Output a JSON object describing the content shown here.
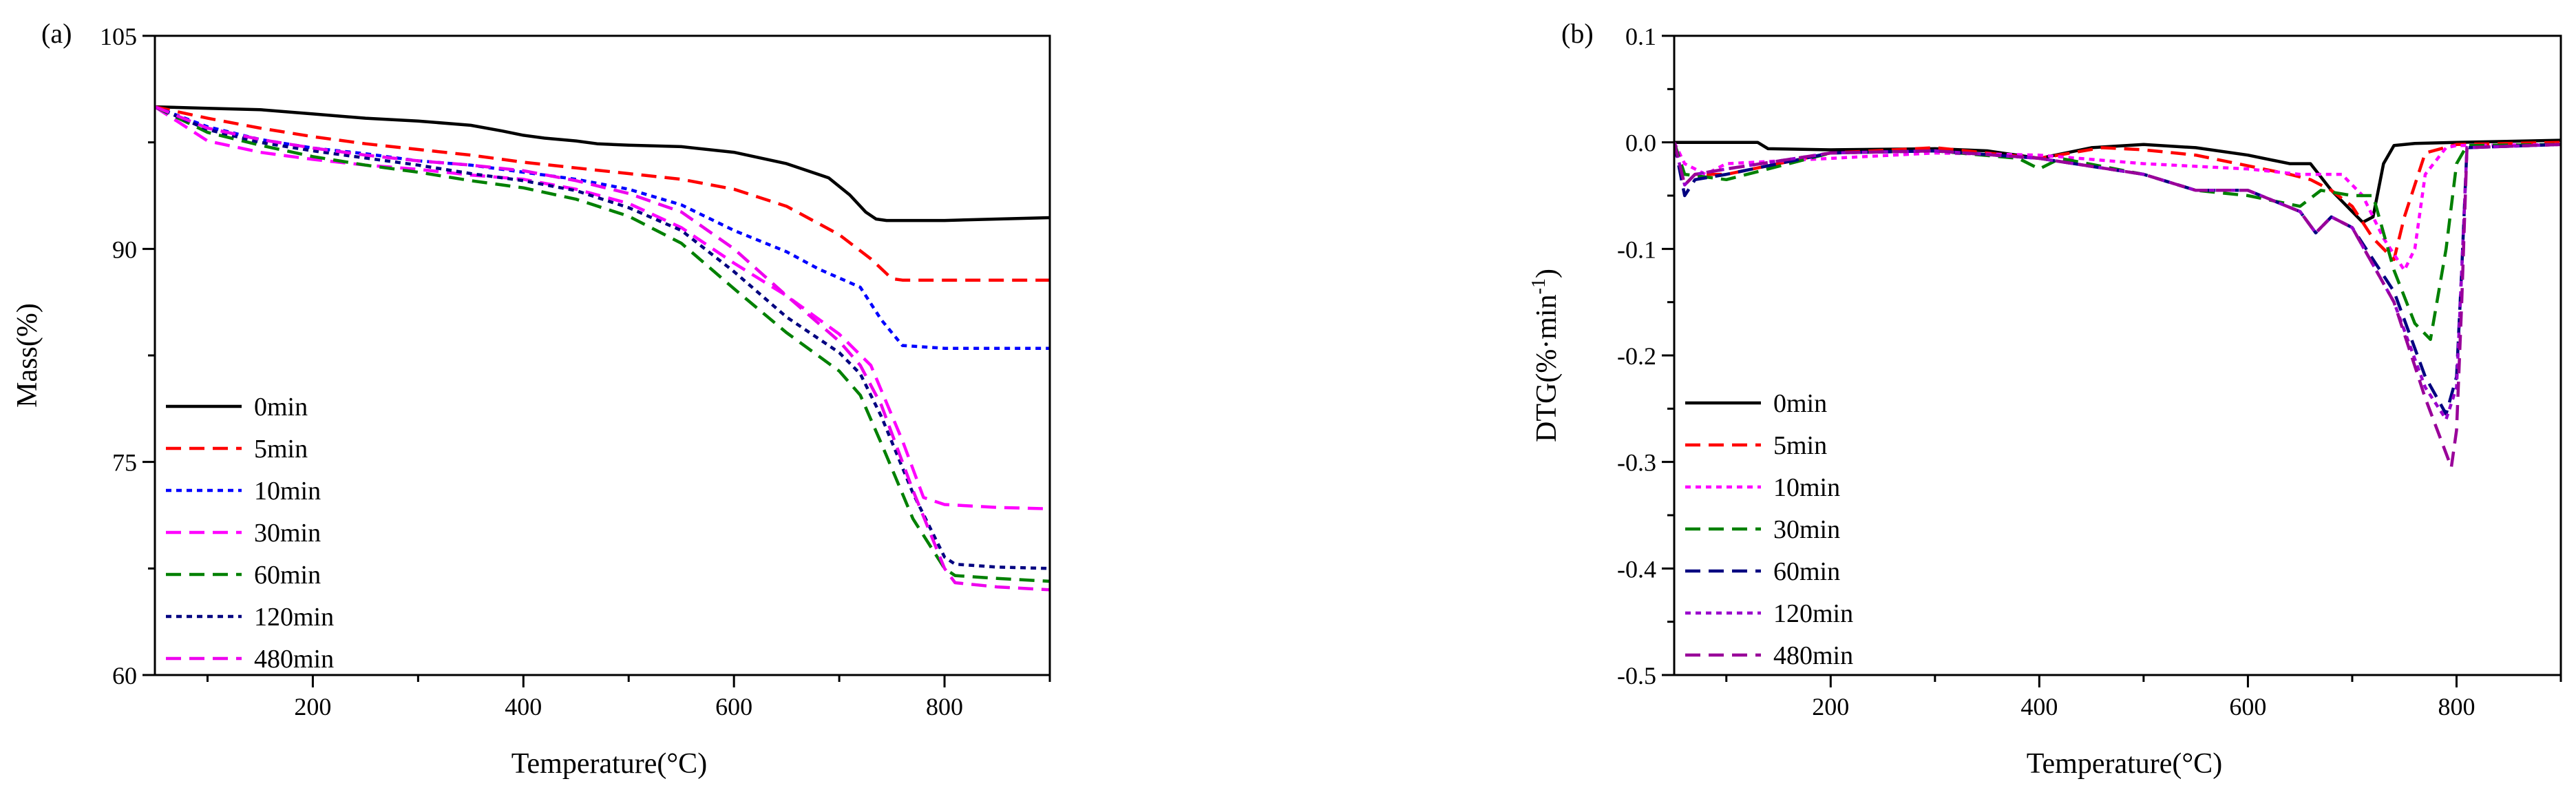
{
  "chart_data": [
    {
      "type": "line",
      "panel_label": "(a)",
      "title": "",
      "xlabel": "Temperature(°C)",
      "ylabel": "Mass(%)",
      "xlim": [
        50,
        900
      ],
      "ylim": [
        60,
        105
      ],
      "xticks": [
        200,
        400,
        600,
        800
      ],
      "yticks": [
        60,
        75,
        90,
        105
      ],
      "xtick_labels": [
        "200",
        "400",
        "600",
        "800"
      ],
      "ytick_labels": [
        "60",
        "75",
        "90",
        "105"
      ],
      "grid": false,
      "legend": "bottom-left",
      "series": [
        {
          "name": "0min",
          "color": "#000000",
          "dash": "solid",
          "x": [
            50,
            100,
            150,
            200,
            250,
            300,
            350,
            380,
            400,
            420,
            450,
            470,
            500,
            550,
            600,
            650,
            690,
            710,
            725,
            735,
            745,
            760,
            800,
            850,
            900
          ],
          "y": [
            100,
            99.9,
            99.8,
            99.5,
            99.2,
            99.0,
            98.7,
            98.3,
            98.0,
            97.8,
            97.6,
            97.4,
            97.3,
            97.2,
            96.8,
            96.0,
            95.0,
            93.8,
            92.6,
            92.1,
            92.0,
            92.0,
            92.0,
            92.1,
            92.2
          ]
        },
        {
          "name": "5min",
          "color": "#ff0000",
          "dash": "dashed",
          "x": [
            50,
            100,
            150,
            200,
            250,
            300,
            350,
            400,
            450,
            500,
            550,
            600,
            650,
            700,
            730,
            750,
            760,
            800,
            900
          ],
          "y": [
            100,
            99.2,
            98.5,
            97.9,
            97.4,
            97.0,
            96.6,
            96.1,
            95.7,
            95.3,
            94.9,
            94.2,
            93.0,
            91.0,
            89.3,
            87.9,
            87.8,
            87.8,
            87.8
          ]
        },
        {
          "name": "10min",
          "color": "#0000ff",
          "dash": "dotted",
          "x": [
            50,
            100,
            150,
            200,
            250,
            300,
            350,
            400,
            450,
            500,
            550,
            600,
            650,
            680,
            720,
            740,
            760,
            800,
            900
          ],
          "y": [
            100,
            98.6,
            97.7,
            97.1,
            96.7,
            96.2,
            95.9,
            95.4,
            94.9,
            94.2,
            93.1,
            91.3,
            89.8,
            88.6,
            87.3,
            85.0,
            83.2,
            83.0,
            83.0
          ]
        },
        {
          "name": "30min",
          "color": "#ff00ff",
          "dash": "dashed",
          "x": [
            50,
            100,
            150,
            200,
            250,
            300,
            350,
            400,
            450,
            500,
            550,
            600,
            650,
            700,
            730,
            760,
            780,
            800,
            850,
            900
          ],
          "y": [
            100,
            97.6,
            96.8,
            96.3,
            95.9,
            95.6,
            95.2,
            94.9,
            94.2,
            93.2,
            91.5,
            89.0,
            86.7,
            84.0,
            81.8,
            76.5,
            72.5,
            72.0,
            71.8,
            71.7
          ]
        },
        {
          "name": "60min",
          "color": "#008000",
          "dash": "dashed",
          "x": [
            50,
            100,
            150,
            200,
            250,
            300,
            350,
            400,
            450,
            500,
            550,
            600,
            650,
            700,
            720,
            740,
            770,
            800,
            810,
            850,
            900
          ],
          "y": [
            100,
            98.2,
            97.3,
            96.5,
            95.9,
            95.4,
            94.8,
            94.3,
            93.5,
            92.3,
            90.4,
            87.2,
            84.1,
            81.4,
            79.7,
            76.3,
            71.0,
            67.5,
            67.0,
            66.8,
            66.6
          ]
        },
        {
          "name": "120min",
          "color": "#000080",
          "dash": "dotted",
          "x": [
            50,
            100,
            150,
            200,
            250,
            300,
            350,
            400,
            450,
            500,
            550,
            600,
            650,
            700,
            720,
            740,
            770,
            800,
            810,
            850,
            900
          ],
          "y": [
            100,
            98.4,
            97.5,
            96.9,
            96.4,
            95.9,
            95.3,
            94.8,
            94.1,
            92.9,
            91.3,
            88.4,
            85.2,
            82.7,
            81.2,
            78.2,
            72.8,
            68.3,
            67.8,
            67.6,
            67.5
          ]
        },
        {
          "name": "480min",
          "color": "#ee00ee",
          "dash": "dashed",
          "x": [
            50,
            100,
            150,
            200,
            250,
            300,
            350,
            400,
            450,
            500,
            550,
            600,
            650,
            700,
            720,
            740,
            770,
            800,
            810,
            850,
            900
          ],
          "y": [
            100,
            98.5,
            97.7,
            97.1,
            96.6,
            96.2,
            95.9,
            95.5,
            94.8,
            93.9,
            92.6,
            90.0,
            86.7,
            83.5,
            81.8,
            79.0,
            73.0,
            67.5,
            66.5,
            66.2,
            66.0
          ]
        }
      ]
    },
    {
      "type": "line",
      "panel_label": "(b)",
      "title": "",
      "xlabel": "Temperature(°C)",
      "ylabel": "DTG(%·min",
      "ylabel_sup": "-1",
      "ylabel_end": ")",
      "xlim": [
        50,
        900
      ],
      "ylim": [
        -0.5,
        0.1
      ],
      "xticks": [
        200,
        400,
        600,
        800
      ],
      "yticks": [
        -0.5,
        -0.4,
        -0.3,
        -0.2,
        -0.1,
        0.0,
        0.1
      ],
      "xtick_labels": [
        "200",
        "400",
        "600",
        "800"
      ],
      "ytick_labels": [
        "-0.5",
        "-0.4",
        "-0.3",
        "-0.2",
        "-0.1",
        "0.0",
        "0.1"
      ],
      "grid": false,
      "legend": "bottom-left",
      "series": [
        {
          "name": "0min",
          "color": "#000000",
          "dash": "solid",
          "x": [
            50,
            100,
            130,
            140,
            200,
            300,
            350,
            400,
            450,
            500,
            550,
            600,
            640,
            660,
            680,
            700,
            710,
            720,
            730,
            740,
            760,
            800,
            900
          ],
          "y": [
            0,
            0,
            0,
            -0.006,
            -0.007,
            -0.006,
            -0.008,
            -0.015,
            -0.005,
            -0.002,
            -0.005,
            -0.012,
            -0.02,
            -0.02,
            -0.045,
            -0.065,
            -0.075,
            -0.07,
            -0.02,
            -0.003,
            -0.001,
            0,
            0.002
          ]
        },
        {
          "name": "5min",
          "color": "#ff0000",
          "dash": "dashed",
          "x": [
            50,
            60,
            70,
            100,
            200,
            300,
            400,
            460,
            500,
            550,
            600,
            640,
            660,
            680,
            700,
            720,
            740,
            750,
            770,
            800,
            900
          ],
          "y": [
            0,
            -0.04,
            -0.03,
            -0.03,
            -0.01,
            -0.005,
            -0.015,
            -0.005,
            -0.007,
            -0.012,
            -0.022,
            -0.03,
            -0.035,
            -0.045,
            -0.06,
            -0.09,
            -0.11,
            -0.07,
            -0.01,
            -0.002,
            0
          ]
        },
        {
          "name": "10min",
          "color": "#ff00ff",
          "dash": "dotted",
          "x": [
            50,
            60,
            80,
            100,
            200,
            300,
            400,
            500,
            600,
            650,
            690,
            710,
            730,
            750,
            760,
            770,
            790,
            800,
            900
          ],
          "y": [
            0,
            -0.02,
            -0.03,
            -0.02,
            -0.015,
            -0.01,
            -0.012,
            -0.02,
            -0.025,
            -0.03,
            -0.03,
            -0.05,
            -0.09,
            -0.12,
            -0.1,
            -0.03,
            -0.005,
            -0.003,
            -0.002
          ]
        },
        {
          "name": "30min",
          "color": "#008000",
          "dash": "dashed",
          "x": [
            50,
            60,
            100,
            200,
            300,
            380,
            400,
            420,
            500,
            550,
            600,
            650,
            670,
            700,
            720,
            740,
            760,
            775,
            790,
            800,
            810,
            900
          ],
          "y": [
            0,
            -0.03,
            -0.035,
            -0.01,
            -0.008,
            -0.015,
            -0.025,
            -0.015,
            -0.03,
            -0.045,
            -0.05,
            -0.06,
            -0.045,
            -0.05,
            -0.05,
            -0.12,
            -0.17,
            -0.185,
            -0.1,
            -0.02,
            -0.003,
            -0.002
          ]
        },
        {
          "name": "60min",
          "color": "#000080",
          "dash": "dashed",
          "x": [
            50,
            60,
            70,
            100,
            200,
            300,
            400,
            500,
            550,
            600,
            650,
            665,
            680,
            700,
            740,
            770,
            790,
            800,
            805,
            810,
            900
          ],
          "y": [
            0,
            -0.05,
            -0.035,
            -0.03,
            -0.01,
            -0.008,
            -0.015,
            -0.03,
            -0.045,
            -0.045,
            -0.065,
            -0.085,
            -0.07,
            -0.08,
            -0.14,
            -0.22,
            -0.255,
            -0.22,
            -0.12,
            -0.005,
            -0.002
          ]
        },
        {
          "name": "120min",
          "color": "#9900cc",
          "dash": "dotted",
          "x": [
            50,
            60,
            70,
            100,
            200,
            300,
            400,
            500,
            550,
            600,
            650,
            665,
            680,
            700,
            740,
            770,
            790,
            800,
            805,
            810,
            900
          ],
          "y": [
            0,
            -0.04,
            -0.03,
            -0.025,
            -0.01,
            -0.008,
            -0.015,
            -0.03,
            -0.045,
            -0.045,
            -0.065,
            -0.085,
            -0.07,
            -0.08,
            -0.15,
            -0.23,
            -0.26,
            -0.23,
            -0.12,
            -0.005,
            -0.002
          ]
        },
        {
          "name": "480min",
          "color": "#990099",
          "dash": "dashed",
          "x": [
            50,
            60,
            70,
            100,
            200,
            300,
            400,
            500,
            550,
            600,
            650,
            665,
            680,
            700,
            740,
            770,
            795,
            800,
            805,
            810,
            900
          ],
          "y": [
            0,
            -0.04,
            -0.03,
            -0.025,
            -0.01,
            -0.008,
            -0.015,
            -0.03,
            -0.045,
            -0.045,
            -0.065,
            -0.085,
            -0.07,
            -0.08,
            -0.15,
            -0.24,
            -0.305,
            -0.27,
            -0.15,
            -0.005,
            -0.002
          ]
        }
      ]
    }
  ]
}
